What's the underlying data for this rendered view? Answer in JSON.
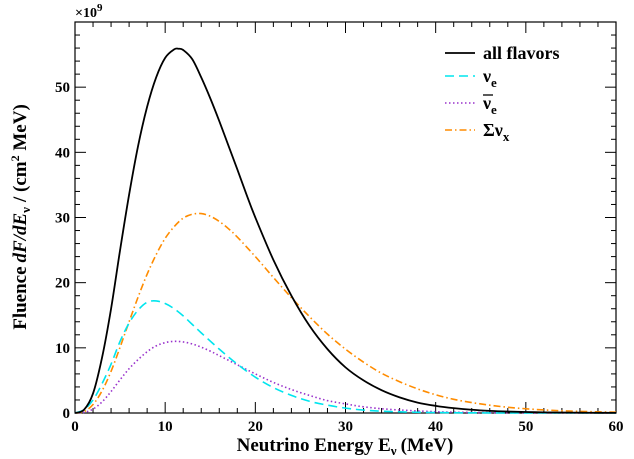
{
  "chart_data": {
    "type": "line",
    "xlabel": "Neutrino Energy E",
    "xlabel_sub": "ν",
    "xlabel_unit": "(MeV)",
    "ylabel_prefix": "Fluence",
    "ylabel_math": "dF/dE",
    "ylabel_sub": "ν",
    "ylabel_unit": "/ (cm",
    "ylabel_unit_sup": "2",
    "ylabel_unit_end": " MeV)",
    "y_multiplier": "×10",
    "y_multiplier_exp": "9",
    "xlim": [
      0,
      60
    ],
    "ylim": [
      0,
      60
    ],
    "x_ticks": [
      0,
      10,
      20,
      30,
      40,
      50,
      60
    ],
    "y_ticks": [
      0,
      10,
      20,
      30,
      40,
      50
    ],
    "x_tick_labels": [
      "0",
      "10",
      "20",
      "30",
      "40",
      "50",
      "60"
    ],
    "y_tick_labels": [
      "0",
      "10",
      "20",
      "30",
      "40",
      "50"
    ],
    "grid": false,
    "legend_position": "top-right",
    "series": [
      {
        "name": "all flavors",
        "color": "#000000",
        "style": "solid",
        "x": [
          0,
          1,
          2,
          3,
          4,
          5,
          6,
          7,
          8,
          9,
          10,
          11,
          11.5,
          12,
          13,
          14,
          15,
          16,
          17,
          18,
          19,
          20,
          22,
          24,
          26,
          28,
          30,
          32,
          34,
          36,
          38,
          40,
          42,
          44,
          46,
          48,
          50,
          52,
          54,
          56,
          58,
          60
        ],
        "y": [
          0,
          0.5,
          3,
          8.5,
          16,
          25,
          33.5,
          41,
          47,
          51.5,
          54.5,
          55.8,
          55.9,
          55.7,
          54.3,
          51.5,
          48.3,
          44.8,
          41.1,
          37.4,
          33.6,
          30,
          23.5,
          18,
          13.4,
          9.8,
          7,
          5,
          3.5,
          2.4,
          1.6,
          1.1,
          0.75,
          0.5,
          0.33,
          0.22,
          0.15,
          0.1,
          0.07,
          0.05,
          0.03,
          0.02
        ]
      },
      {
        "name": "νe",
        "label_main": "ν",
        "label_sub": "e",
        "color": "#00e5ee",
        "style": "dashed",
        "x": [
          0,
          1,
          2,
          3,
          4,
          5,
          6,
          7,
          8,
          9,
          10,
          11,
          12,
          13,
          14,
          16,
          18,
          20,
          22,
          24,
          26,
          28,
          30,
          32,
          35,
          40,
          45,
          50,
          55,
          60
        ],
        "y": [
          0,
          0.5,
          2,
          4.5,
          7.5,
          11,
          13.8,
          15.8,
          17,
          17.2,
          16.8,
          16,
          14.9,
          13.6,
          12.3,
          9.8,
          7.5,
          5.5,
          3.9,
          2.7,
          1.8,
          1.2,
          0.75,
          0.45,
          0.22,
          0.07,
          0.02,
          0.01,
          0,
          0
        ]
      },
      {
        "name": "ν̄e",
        "label_main": "ν",
        "label_sub": "e",
        "label_bar": true,
        "color": "#9932cc",
        "style": "dotted",
        "x": [
          0,
          1,
          2,
          3,
          4,
          5,
          6,
          7,
          8,
          9,
          10,
          11,
          12,
          13,
          14,
          15,
          16,
          18,
          20,
          22,
          24,
          26,
          28,
          30,
          32,
          35,
          40,
          45,
          50,
          55,
          60
        ],
        "y": [
          0,
          0.1,
          0.6,
          1.7,
          3.3,
          5.1,
          6.8,
          8.2,
          9.4,
          10.3,
          10.8,
          11,
          10.9,
          10.6,
          10.1,
          9.5,
          8.8,
          7.4,
          6,
          4.7,
          3.6,
          2.7,
          1.9,
          1.4,
          0.95,
          0.55,
          0.2,
          0.07,
          0.02,
          0.01,
          0
        ]
      },
      {
        "name": "Σνx",
        "label_main": "Σν",
        "label_sub": "x",
        "color": "#ff8c00",
        "style": "dashdot",
        "x": [
          0,
          1,
          2,
          3,
          4,
          5,
          6,
          7,
          8,
          9,
          10,
          11,
          12,
          13,
          14,
          15,
          16,
          17,
          18,
          20,
          22,
          24,
          26,
          28,
          30,
          32,
          34,
          36,
          38,
          40,
          42,
          44,
          46,
          48,
          50,
          52,
          54,
          56,
          58,
          60
        ],
        "y": [
          0,
          0.2,
          1.3,
          3.4,
          6.4,
          10.1,
          14,
          17.8,
          21.3,
          24.3,
          26.8,
          28.6,
          29.9,
          30.5,
          30.6,
          30.2,
          29.4,
          28.3,
          27,
          24,
          20.8,
          17.7,
          14.8,
          12.1,
          9.8,
          7.8,
          6.1,
          4.8,
          3.7,
          2.8,
          2.1,
          1.6,
          1.2,
          0.88,
          0.65,
          0.47,
          0.34,
          0.25,
          0.18,
          0.13
        ]
      }
    ]
  }
}
